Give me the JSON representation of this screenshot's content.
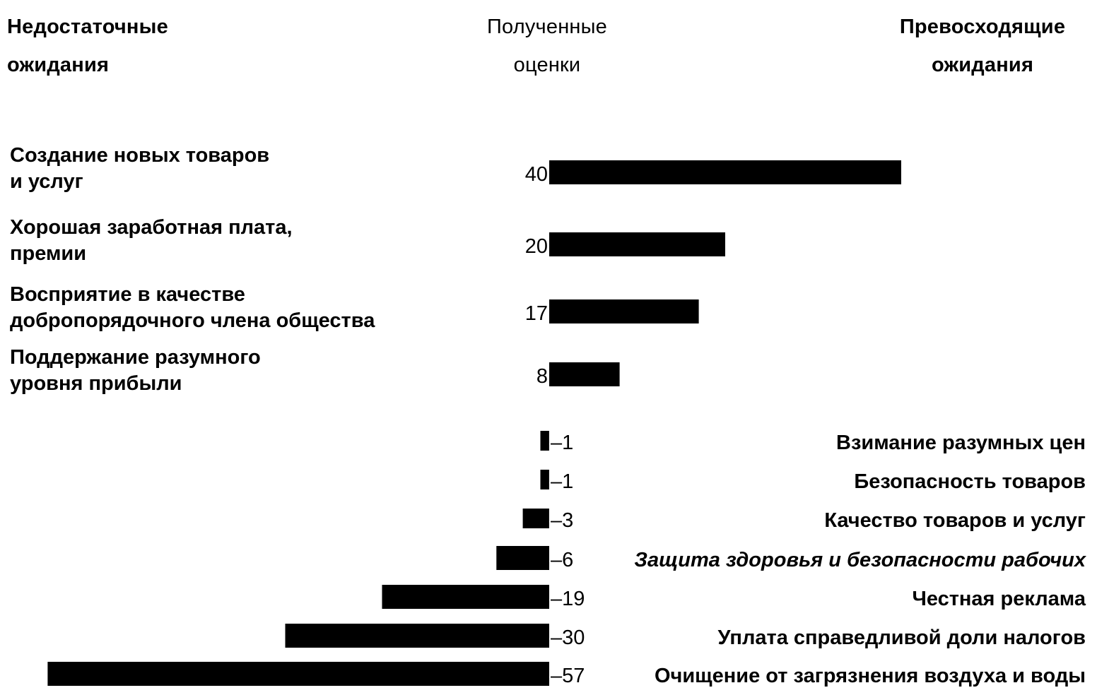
{
  "header": {
    "left": "Недостаточные\nожидания",
    "middle": "Полученные\nоценки",
    "right": "Превосходящие\nожидания"
  },
  "chart_data": {
    "type": "bar",
    "orientation": "horizontal",
    "title": "",
    "xlabel": "",
    "ylabel": "",
    "xlim": [
      -60,
      42
    ],
    "grid": false,
    "bar_color": "#000000",
    "categories": [
      "Создание новых товаров\nи услуг",
      "Хорошая заработная плата,\nпремии",
      "Восприятие в качестве\nдобропорядочного члена общества",
      "Поддержание разумного\nуровня прибыли",
      "Взимание разумных цен",
      "Безопасность товаров",
      "Качество товаров и услуг",
      "Защита здоровья и безопасности рабочих",
      "Честная реклама",
      "Уплата справедливой доли налогов",
      "Очищение от загрязнения воздуха и воды"
    ],
    "values": [
      40,
      20,
      17,
      8,
      -1,
      -1,
      -3,
      -6,
      -19,
      -30,
      -57
    ],
    "value_labels": [
      "40",
      "20",
      "17",
      "8",
      "–1",
      "–1",
      "–3",
      "–6",
      "–19",
      "–30",
      "–57"
    ]
  }
}
